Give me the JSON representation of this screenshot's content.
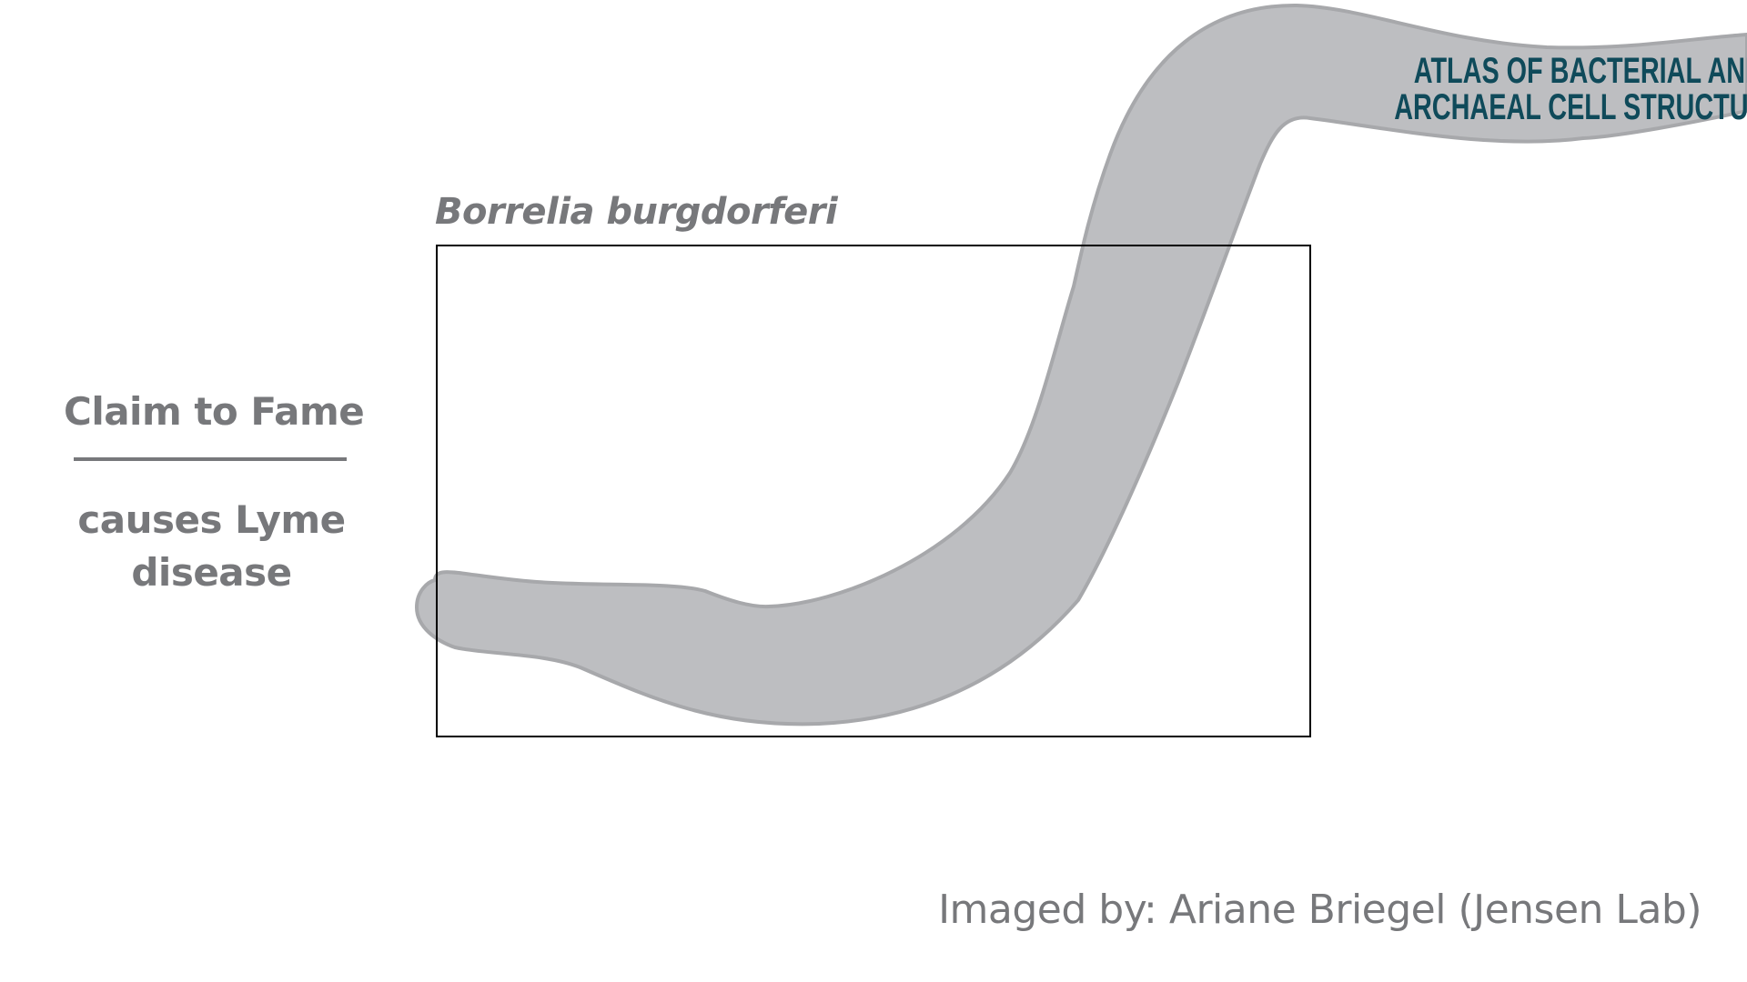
{
  "species": {
    "name": "Borrelia burgdorferi"
  },
  "claim": {
    "heading": "Claim to Fame",
    "text": "causes Lyme disease"
  },
  "credit": {
    "text": "Imaged by: Ariane Briegel (Jensen Lab)"
  },
  "logo": {
    "line1": "Atlas of Bacterial and",
    "line2": "Archaeal Cell Structure",
    "color": "#0f4a5a"
  },
  "colors": {
    "cell_fill": "#bdbec1",
    "cell_outline": "#a7a8ab",
    "text_gray": "#77787b",
    "frame": "#000000",
    "background": "#ffffff"
  }
}
